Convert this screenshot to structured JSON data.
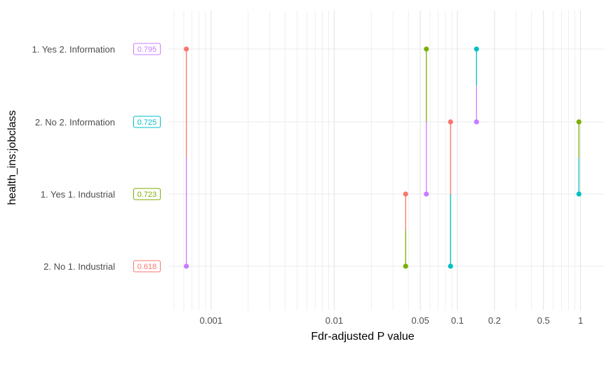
{
  "chart_data": {
    "type": "scatter",
    "xlabel": "Fdr-adjusted P value",
    "ylabel": "health_ins:jobclass",
    "x_scale": "log10",
    "xlim": [
      0.00045,
      1.55
    ],
    "x_ticks": [
      {
        "value": 0.001,
        "label": "0.001"
      },
      {
        "value": 0.01,
        "label": "0.01"
      },
      {
        "value": 0.05,
        "label": "0.05"
      },
      {
        "value": 0.1,
        "label": "0.1"
      },
      {
        "value": 0.2,
        "label": "0.2"
      },
      {
        "value": 0.5,
        "label": "0.5"
      },
      {
        "value": 1,
        "label": "1"
      }
    ],
    "categories": [
      "1. Yes 2. Information",
      "2. No 2. Information",
      "1. Yes 1. Industrial",
      "2. No 1. Industrial"
    ],
    "label_boxes": [
      {
        "category": "1. Yes 2. Information",
        "text": "0.795",
        "color": "#C77CFF"
      },
      {
        "category": "2. No 2. Information",
        "text": "0.725",
        "color": "#00BFC4"
      },
      {
        "category": "1. Yes 1. Industrial",
        "text": "0.723",
        "color": "#7CAE00"
      },
      {
        "category": "2. No 1. Industrial",
        "text": "0.618",
        "color": "#F8766D"
      }
    ],
    "segments": [
      {
        "x": 0.00063,
        "from": "1. Yes 2. Information",
        "to": "2. No 1. Industrial",
        "from_color": "#F8766D",
        "to_color": "#C77CFF"
      },
      {
        "x": 0.056,
        "from": "1. Yes 2. Information",
        "to": "1. Yes 1. Industrial",
        "from_color": "#7CAE00",
        "to_color": "#C77CFF"
      },
      {
        "x": 0.143,
        "from": "1. Yes 2. Information",
        "to": "2. No 2. Information",
        "from_color": "#00BFC4",
        "to_color": "#C77CFF"
      },
      {
        "x": 0.088,
        "from": "2. No 2. Information",
        "to": "2. No 1. Industrial",
        "from_color": "#F8766D",
        "to_color": "#00BFC4"
      },
      {
        "x": 0.97,
        "from": "2. No 2. Information",
        "to": "1. Yes 1. Industrial",
        "from_color": "#7CAE00",
        "to_color": "#00BFC4"
      },
      {
        "x": 0.038,
        "from": "1. Yes 1. Industrial",
        "to": "2. No 1. Industrial",
        "from_color": "#F8766D",
        "to_color": "#7CAE00"
      }
    ],
    "grid": true,
    "legend": "none"
  }
}
